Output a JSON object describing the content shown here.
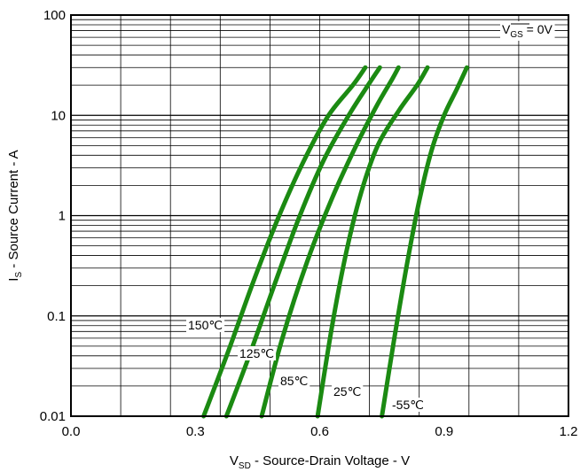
{
  "chart_data": {
    "type": "line",
    "title": "",
    "xlabel": {
      "main": "V",
      "sub": "SD",
      "rest": " - Source-Drain Voltage - V"
    },
    "ylabel": {
      "main": "I",
      "sub": "S",
      "rest": " - Source Current - A"
    },
    "xlim": [
      0.0,
      1.2
    ],
    "ylim": [
      0.01,
      100
    ],
    "yscale": "log",
    "grid": true,
    "x_ticks": [
      0.0,
      0.3,
      0.6,
      0.9,
      1.2
    ],
    "x_tick_labels": [
      "0.0",
      "0.3",
      "0.6",
      "0.9",
      "1.2"
    ],
    "y_ticks": [
      0.01,
      0.1,
      1,
      10,
      100
    ],
    "y_tick_labels": [
      "0.01",
      "0.1",
      "1",
      "10",
      "100"
    ],
    "annotation": {
      "main": "V",
      "sub": "GS",
      "rest": " = 0V"
    },
    "line_color": "#1b8a12",
    "series": [
      {
        "name": "150℃",
        "x": [
          0.32,
          0.38,
          0.44,
          0.5,
          0.56,
          0.62,
          0.68,
          0.71
        ],
        "y": [
          0.01,
          0.045,
          0.22,
          0.95,
          3.4,
          9.8,
          20.0,
          30.0
        ]
      },
      {
        "name": "125℃",
        "x": [
          0.375,
          0.43,
          0.49,
          0.55,
          0.61,
          0.67,
          0.72,
          0.745
        ],
        "y": [
          0.01,
          0.04,
          0.2,
          0.95,
          3.6,
          10.0,
          21.0,
          30.0
        ]
      },
      {
        "name": "85℃",
        "x": [
          0.46,
          0.51,
          0.57,
          0.63,
          0.69,
          0.74,
          0.775,
          0.79
        ],
        "y": [
          0.01,
          0.06,
          0.35,
          1.5,
          5.2,
          13.0,
          23.0,
          30.0
        ]
      },
      {
        "name": "25℃",
        "x": [
          0.595,
          0.63,
          0.665,
          0.7,
          0.74,
          0.79,
          0.835,
          0.86
        ],
        "y": [
          0.01,
          0.08,
          0.45,
          1.7,
          5.0,
          11.0,
          20.0,
          30.0
        ]
      },
      {
        "name": "-55℃",
        "x": [
          0.75,
          0.78,
          0.81,
          0.84,
          0.87,
          0.9,
          0.93,
          0.955
        ],
        "y": [
          0.01,
          0.06,
          0.32,
          1.4,
          4.5,
          10.0,
          18.0,
          30.0
        ]
      }
    ]
  }
}
